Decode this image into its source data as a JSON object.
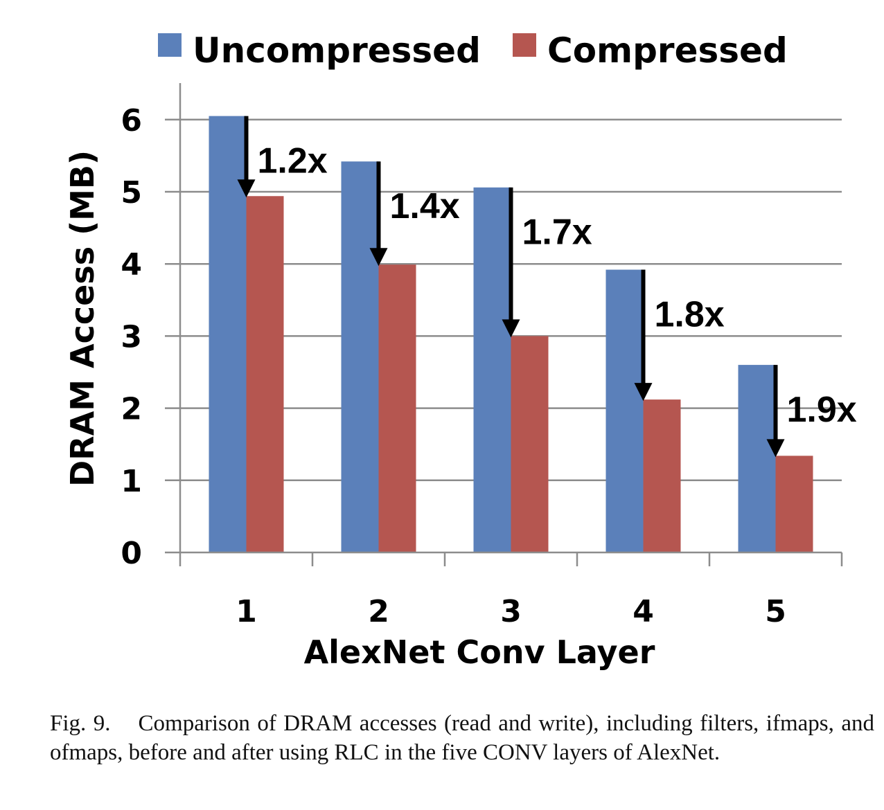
{
  "chart_data": {
    "type": "bar",
    "categories": [
      "1",
      "2",
      "3",
      "4",
      "5"
    ],
    "series": [
      {
        "name": "Uncompressed",
        "color": "#5b80ba",
        "values": [
          6.05,
          5.42,
          5.06,
          3.92,
          2.6
        ]
      },
      {
        "name": "Compressed",
        "color": "#b55650",
        "values": [
          4.94,
          3.99,
          3.0,
          2.12,
          1.34
        ]
      }
    ],
    "annotations": [
      "1.2x",
      "1.4x",
      "1.7x",
      "1.8x",
      "1.9x"
    ],
    "xlabel": "AlexNet Conv Layer",
    "ylabel": "DRAM Access (MB)",
    "ylim": [
      0,
      6
    ],
    "yticks": [
      "0",
      "1",
      "2",
      "3",
      "4",
      "5",
      "6"
    ],
    "grid": true,
    "legend_position": "top"
  },
  "caption": {
    "label": "Fig. 9.",
    "text": "Comparison of DRAM accesses (read and write), including filters, ifmaps, and ofmaps, before and after using RLC in the five CONV layers of AlexNet."
  }
}
